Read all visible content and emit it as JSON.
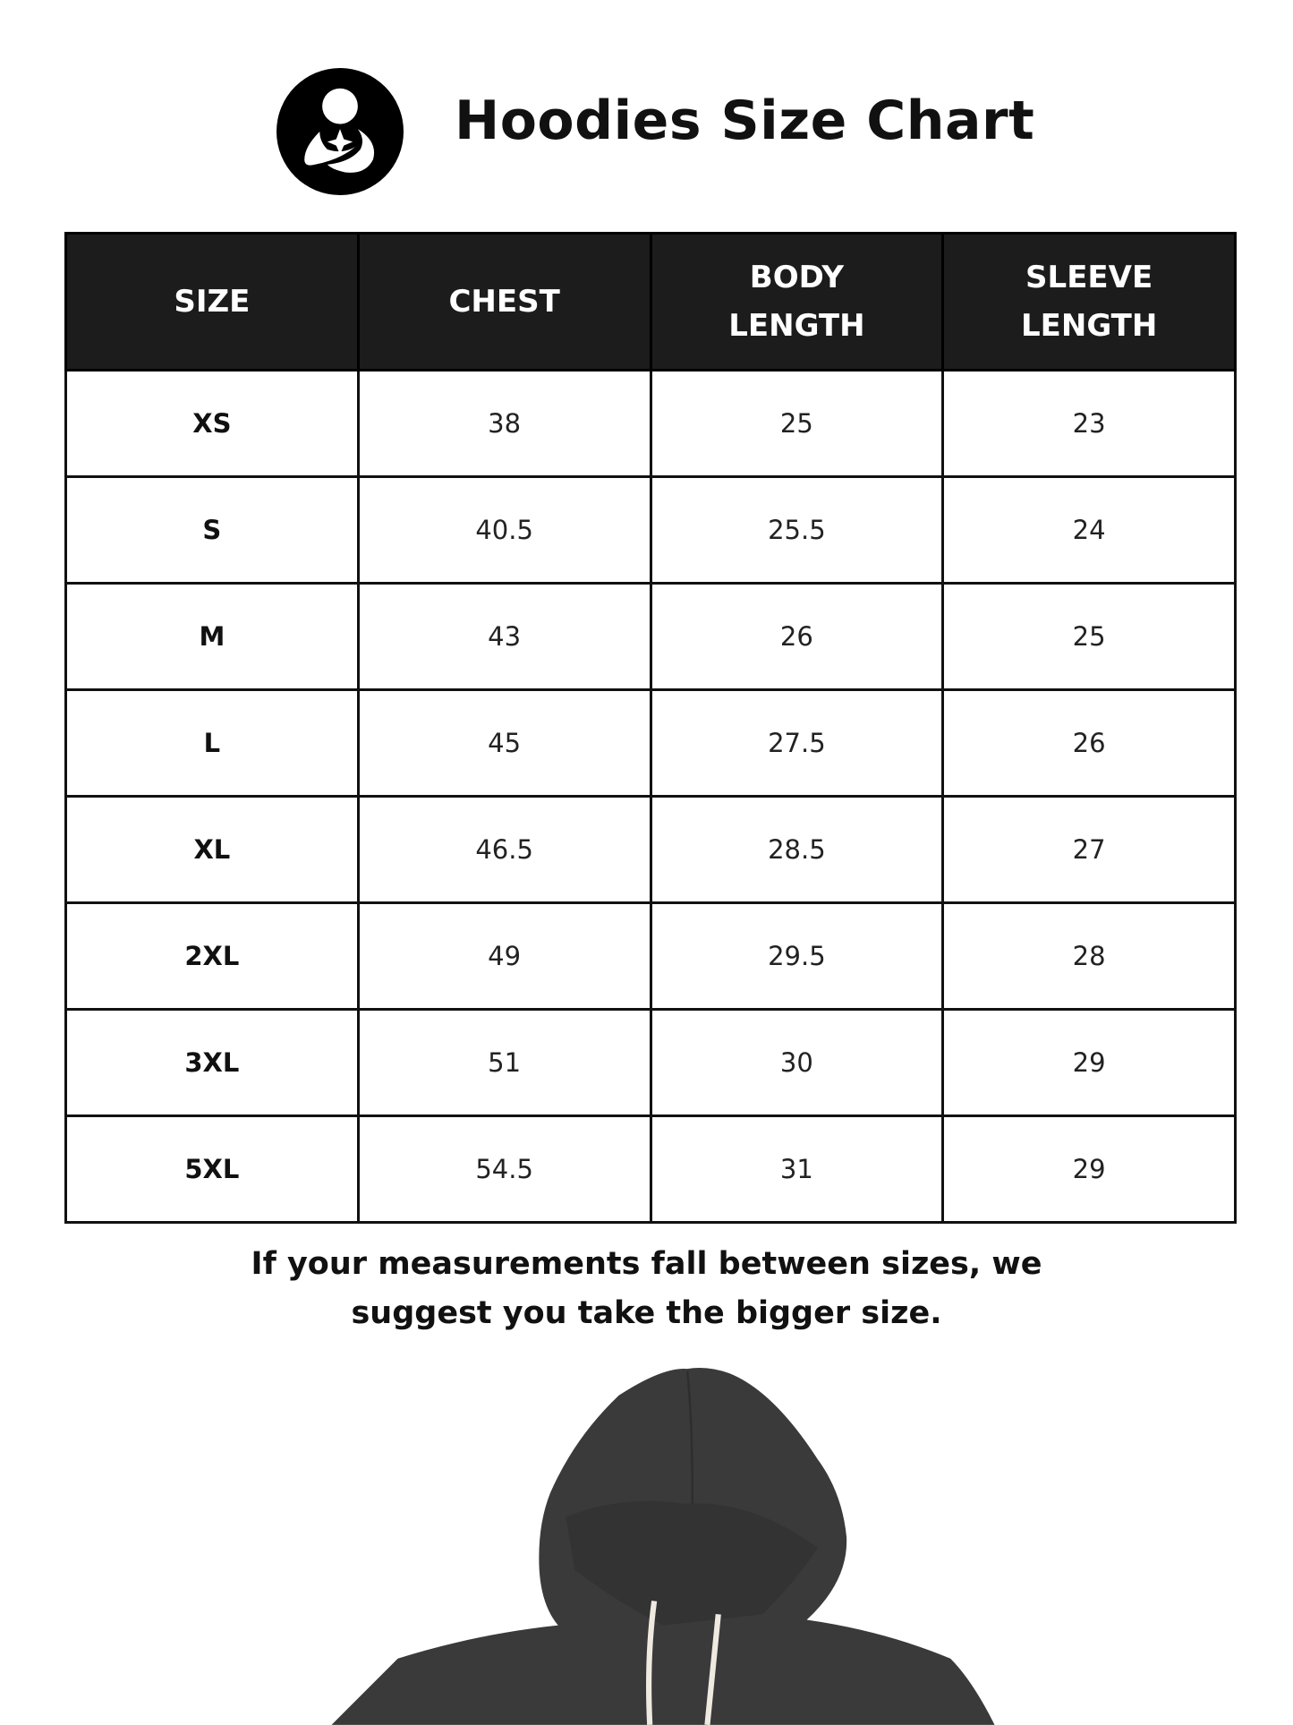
{
  "header": {
    "title": "Hoodies Size Chart",
    "logo_icon": "mother-child-logo-icon"
  },
  "table": {
    "columns": [
      "SIZE",
      "CHEST",
      "BODY LENGTH",
      "SLEEVE LENGTH"
    ],
    "rows": [
      [
        "XS",
        "38",
        "25",
        "23"
      ],
      [
        "S",
        "40.5",
        "25.5",
        "24"
      ],
      [
        "M",
        "43",
        "26",
        "25"
      ],
      [
        "L",
        "45",
        "27.5",
        "26"
      ],
      [
        "XL",
        "46.5",
        "28.5",
        "27"
      ],
      [
        "2XL",
        "49",
        "29.5",
        "28"
      ],
      [
        "3XL",
        "51",
        "30",
        "29"
      ],
      [
        "5XL",
        "54.5",
        "31",
        "29"
      ]
    ]
  },
  "note": {
    "line1": "If your measurements fall between sizes, we",
    "line2": "suggest you take the bigger size."
  },
  "colors": {
    "header_bg": "#1c1c1c",
    "hoodie": "#3a3a3b",
    "drawstring": "#efeae0"
  }
}
